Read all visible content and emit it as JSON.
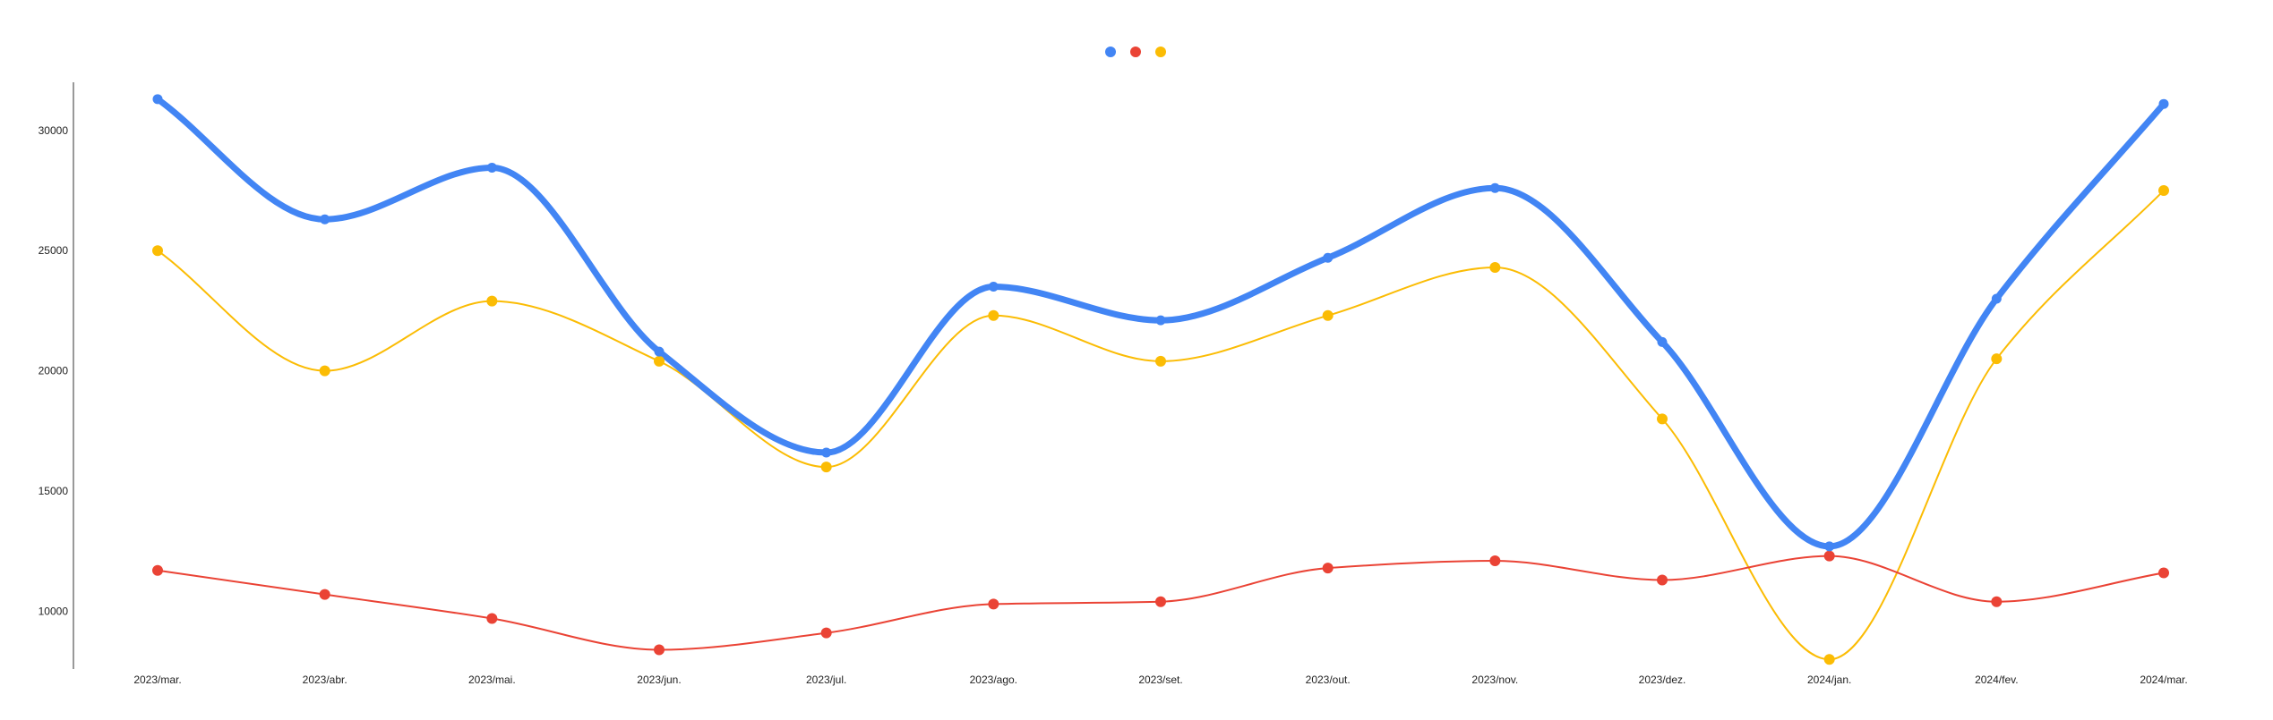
{
  "chart_data": {
    "type": "line",
    "categories": [
      "2023/mar.",
      "2023/abr.",
      "2023/mai.",
      "2023/jun.",
      "2023/jul.",
      "2023/ago.",
      "2023/set.",
      "2023/out.",
      "2023/nov.",
      "2023/dez.",
      "2024/jan.",
      "2024/fev.",
      "2024/mar."
    ],
    "series": [
      {
        "color": "#4285f4",
        "values": [
          31300,
          26300,
          28450,
          20800,
          16600,
          23500,
          22100,
          24700,
          27600,
          21200,
          12700,
          23000,
          31100
        ]
      },
      {
        "color": "#ea4335",
        "values": [
          11700,
          10700,
          9700,
          8400,
          9100,
          10300,
          10400,
          11800,
          12100,
          11300,
          12300,
          10400,
          11600
        ]
      },
      {
        "color": "#fbbc04",
        "values": [
          25000,
          20000,
          22900,
          20400,
          16000,
          22300,
          20400,
          22300,
          24300,
          18000,
          8000,
          20500,
          27500
        ]
      }
    ],
    "y_ticks": [
      "10000",
      "15000",
      "20000",
      "25000",
      "30000"
    ],
    "ylim": [
      7600,
      32000
    ],
    "legend": "top-center",
    "grid": false,
    "title": "",
    "xlabel": "",
    "ylabel": ""
  }
}
